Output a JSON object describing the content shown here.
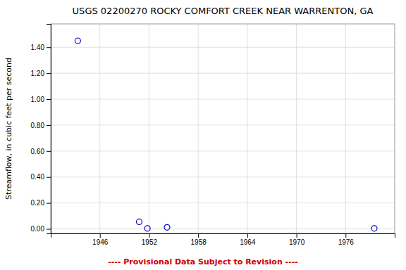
{
  "chart_data": {
    "type": "scatter",
    "title": "USGS 02200270 ROCKY COMFORT CREEK NEAR WARRENTON, GA",
    "y_label": "Streamflow, in cubic feet per second",
    "annotations": [
      {
        "text": "---- Provisional Data Subject to Revision ----",
        "color": "#cc0000"
      }
    ],
    "x": [
      1943.3,
      1950.8,
      1951.8,
      1954.2,
      1979.5
    ],
    "values": [
      1.45,
      0.055,
      0.004,
      0.012,
      0.004
    ],
    "color": "#0000cc",
    "marker": "circle",
    "xlim": [
      1940,
      1982
    ],
    "ylim": [
      -0.035,
      1.58
    ],
    "xticks": [
      1946,
      1952,
      1958,
      1964,
      1970,
      1976
    ],
    "yticks": [
      {
        "value": 0.0,
        "label": "0.00"
      },
      {
        "value": 0.2,
        "label": "0.20"
      },
      {
        "value": 0.4,
        "label": "0.40"
      },
      {
        "value": 0.6,
        "label": "0.60"
      },
      {
        "value": 0.8,
        "label": "0.80"
      },
      {
        "value": 1.0,
        "label": "1.00"
      },
      {
        "value": 1.2,
        "label": "1.20"
      },
      {
        "value": 1.4,
        "label": "1.40"
      }
    ],
    "grid": true
  }
}
